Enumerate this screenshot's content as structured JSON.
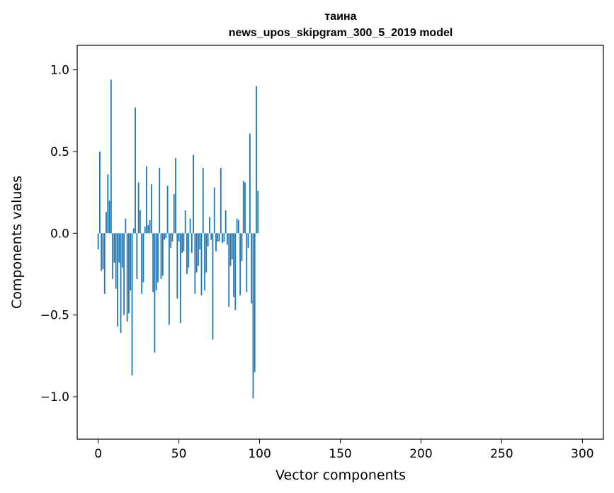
{
  "chart_data": {
    "type": "bar",
    "title_line1": "таина",
    "title_line2": "news_upos_skipgram_300_5_2019 model",
    "xlabel": "Vector components",
    "ylabel": "Components values",
    "xlim": [
      -13,
      313
    ],
    "ylim": [
      -1.26,
      1.15
    ],
    "xticks": [
      0,
      50,
      100,
      150,
      200,
      250,
      300
    ],
    "xtick_labels": [
      "0",
      "50",
      "100",
      "150",
      "200",
      "250",
      "300"
    ],
    "yticks": [
      -1.0,
      -0.5,
      0.0,
      0.5,
      1.0
    ],
    "ytick_labels": [
      "−1.0",
      "−0.5",
      "0.0",
      "0.5",
      "1.0"
    ],
    "bar_color": "#1f77b4",
    "grid": false,
    "values": [
      -0.1,
      0.5,
      -0.23,
      -0.22,
      -0.37,
      0.13,
      0.36,
      0.2,
      0.94,
      -0.28,
      -0.18,
      -0.34,
      -0.57,
      -0.18,
      -0.61,
      -0.21,
      -0.5,
      0.09,
      -0.54,
      -0.49,
      -0.35,
      -0.87,
      0.03,
      0.77,
      -0.28,
      0.31,
      0.14,
      -0.37,
      -0.3,
      0.04,
      0.41,
      0.05,
      0.08,
      0.3,
      -0.36,
      -0.73,
      -0.35,
      -0.3,
      0.4,
      -0.28,
      -0.26,
      -0.04,
      -0.03,
      0.29,
      -0.56,
      -0.09,
      -0.05,
      0.24,
      0.46,
      -0.4,
      -0.05,
      -0.55,
      -0.12,
      -0.11,
      0.14,
      -0.25,
      -0.21,
      0.09,
      -0.12,
      0.48,
      -0.37,
      -0.24,
      -0.2,
      -0.1,
      -0.38,
      0.4,
      -0.35,
      -0.24,
      -0.08,
      0.1,
      -0.04,
      -0.65,
      0.28,
      -0.11,
      -0.05,
      -0.05,
      0.4,
      -0.06,
      -0.05,
      0.14,
      -0.07,
      -0.45,
      -0.2,
      -0.16,
      -0.39,
      -0.47,
      0.09,
      0.08,
      -0.38,
      -0.17,
      0.32,
      0.31,
      -0.36,
      -0.09,
      0.61,
      -0.43,
      -1.01,
      -0.85,
      0.9,
      0.26
    ]
  }
}
